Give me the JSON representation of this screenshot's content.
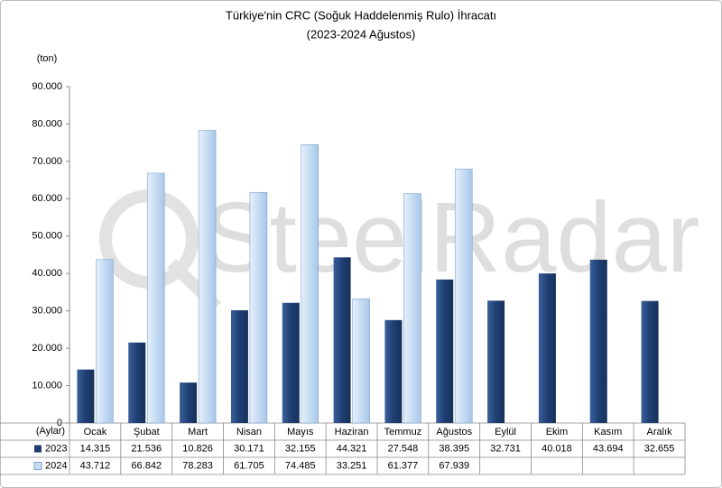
{
  "chart_data": {
    "type": "bar",
    "title": "Türkiye'nin CRC (Soğuk Haddelenmiş Rulo) İhracatı",
    "subtitle": "(2023-2024 Ağustos)",
    "y_label": "(ton)",
    "x_label": "(Aylar)",
    "watermark": "SteelRadar",
    "categories": [
      "Ocak",
      "Şubat",
      "Mart",
      "Nisan",
      "Mayıs",
      "Haziran",
      "Temmuz",
      "Ağustos",
      "Eylül",
      "Ekim",
      "Kasım",
      "Aralık"
    ],
    "series": [
      {
        "name": "2023",
        "color": "#1f3f73",
        "values": [
          14315,
          21536,
          10826,
          30171,
          32155,
          44321,
          27548,
          38395,
          32731,
          40018,
          43694,
          32655
        ],
        "value_labels": [
          "14.315",
          "21.536",
          "10.826",
          "30.171",
          "32.155",
          "44.321",
          "27.548",
          "38.395",
          "32.731",
          "40.018",
          "43.694",
          "32.655"
        ]
      },
      {
        "name": "2024",
        "color": "#c6dcf3",
        "values": [
          43712,
          66842,
          78283,
          61705,
          74485,
          33251,
          61377,
          67939,
          null,
          null,
          null,
          null
        ],
        "value_labels": [
          "43.712",
          "66.842",
          "78.283",
          "61.705",
          "74.485",
          "33.251",
          "61.377",
          "67.939",
          null,
          null,
          null,
          null
        ]
      }
    ],
    "ylim": [
      0,
      90000
    ],
    "yticks": [
      0,
      {
        "value": 10000,
        "label": "10.000"
      },
      {
        "value": 20000,
        "label": "20.000"
      },
      {
        "value": 30000,
        "label": "30.000"
      },
      {
        "value": 40000,
        "label": "40.000"
      },
      {
        "value": 50000,
        "label": "50.000"
      },
      {
        "value": 60000,
        "label": "60.000"
      },
      {
        "value": 70000,
        "label": "70.000"
      },
      {
        "value": 80000,
        "label": "80.000"
      },
      {
        "value": 90000,
        "label": "90.000"
      }
    ],
    "grid": false
  }
}
